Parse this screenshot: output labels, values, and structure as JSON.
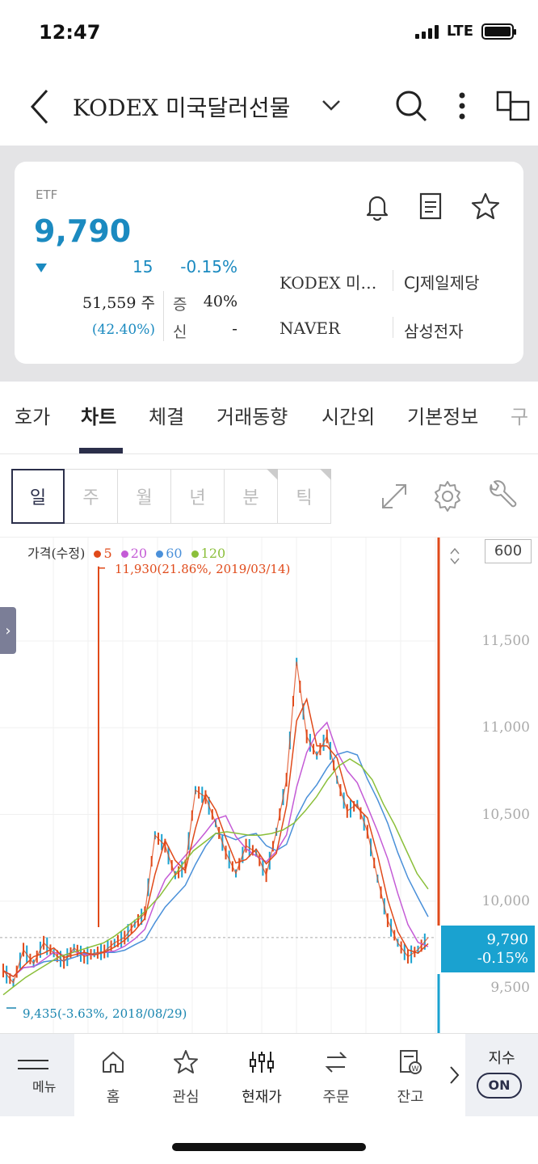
{
  "status": {
    "time": "12:47",
    "network": "LTE"
  },
  "header": {
    "title": "KODEX 미국달러선물"
  },
  "quote": {
    "type": "ETF",
    "price": "9,790",
    "change": "15",
    "change_pct": "-0.15%",
    "volume": "51,559 주",
    "volume_pct": "(42.40%)",
    "margin_label": "증",
    "margin_value": "40%",
    "credit_label": "신",
    "credit_value": "-",
    "related": [
      "KODEX 미…",
      "CJ제일제당",
      "NAVER",
      "삼성전자"
    ]
  },
  "tabs": [
    {
      "label": "호가"
    },
    {
      "label": "차트"
    },
    {
      "label": "체결"
    },
    {
      "label": "거래동향"
    },
    {
      "label": "시간외"
    },
    {
      "label": "기본정보"
    },
    {
      "label": "구"
    }
  ],
  "active_tab": "차트",
  "periods": [
    {
      "label": "일"
    },
    {
      "label": "주"
    },
    {
      "label": "월"
    },
    {
      "label": "년"
    },
    {
      "label": "분"
    },
    {
      "label": "틱"
    }
  ],
  "chart_legend": {
    "label": "가격(수정)",
    "ma": [
      {
        "name": "5",
        "color": "#e04a1a"
      },
      {
        "name": "20",
        "color": "#c45bd6"
      },
      {
        "name": "60",
        "color": "#4a90d9"
      },
      {
        "name": "120",
        "color": "#8bbf3a"
      }
    ]
  },
  "chart_data": {
    "type": "line",
    "title": "",
    "ylim": [
      9300,
      12050
    ],
    "yticks": [
      "11,500",
      "11,000",
      "10,500",
      "10,000",
      "9,500"
    ],
    "ytick_values": [
      11500,
      11000,
      10500,
      10000,
      9500
    ],
    "scale_box": "600",
    "max_annotation": "11,930(21.86%, 2019/03/14)",
    "min_annotation": "9,435(-3.63%, 2018/08/29)",
    "current_price": "9,790",
    "current_change": "-0.15%",
    "price_series": [
      9600,
      9530,
      9720,
      9640,
      9760,
      9700,
      9650,
      9730,
      9680,
      9700,
      9710,
      9760,
      9790,
      9870,
      9930,
      10380,
      10320,
      10150,
      10200,
      10640,
      10600,
      10450,
      10280,
      10160,
      10320,
      10280,
      10150,
      10400,
      10700,
      11380,
      10950,
      10840,
      10950,
      10700,
      10520,
      10560,
      10400,
      10130,
      9890,
      9760,
      9680,
      9720,
      9790
    ],
    "ma120_series": [
      9460,
      9510,
      9560,
      9600,
      9640,
      9680,
      9700,
      9720,
      9740,
      9760,
      9800,
      9850,
      9900,
      9960,
      10030,
      10120,
      10210,
      10290,
      10340,
      10390,
      10400,
      10390,
      10380,
      10380,
      10390,
      10410,
      10450,
      10520,
      10600,
      10700,
      10780,
      10820,
      10780,
      10700,
      10560,
      10440,
      10300,
      10160,
      10070
    ]
  },
  "bottom_nav": {
    "menu": "메뉴",
    "items": [
      {
        "label": "홈"
      },
      {
        "label": "관심"
      },
      {
        "label": "현재가"
      },
      {
        "label": "주문"
      },
      {
        "label": "잔고"
      }
    ],
    "index_label": "지수",
    "index_toggle": "ON"
  }
}
